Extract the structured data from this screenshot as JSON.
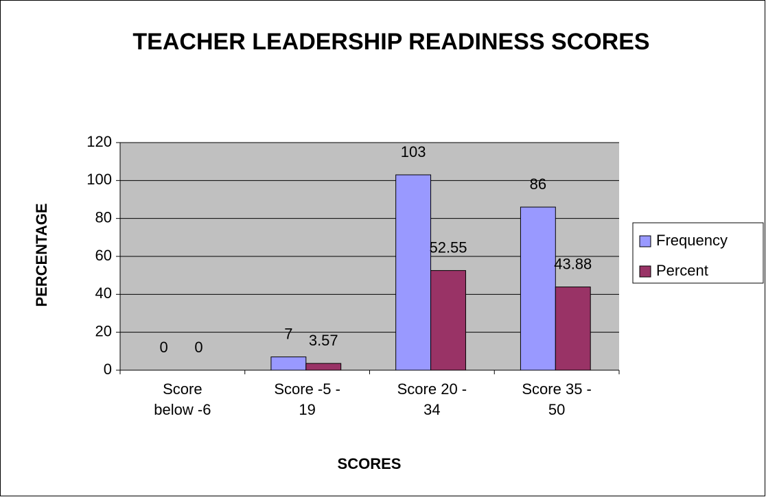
{
  "chart_data": {
    "type": "bar",
    "title": "TEACHER LEADERSHIP READINESS SCORES",
    "x_label": "SCORES",
    "y_label": "PERCENTAGE",
    "categories": [
      "Score below -6",
      "Score -5 - 19",
      "Score 20 - 34",
      "Score 35 - 50"
    ],
    "series": [
      {
        "name": "Frequency",
        "color": "#9999ff",
        "values": [
          0,
          7,
          103,
          86
        ]
      },
      {
        "name": "Percent",
        "color": "#993366",
        "values": [
          0,
          3.57,
          52.55,
          43.88
        ]
      }
    ],
    "ylim": [
      0,
      120
    ],
    "yticks": [
      0,
      20,
      40,
      60,
      80,
      100,
      120
    ],
    "grid": true,
    "legend": "right",
    "plot_background": "#c0c0c0"
  }
}
